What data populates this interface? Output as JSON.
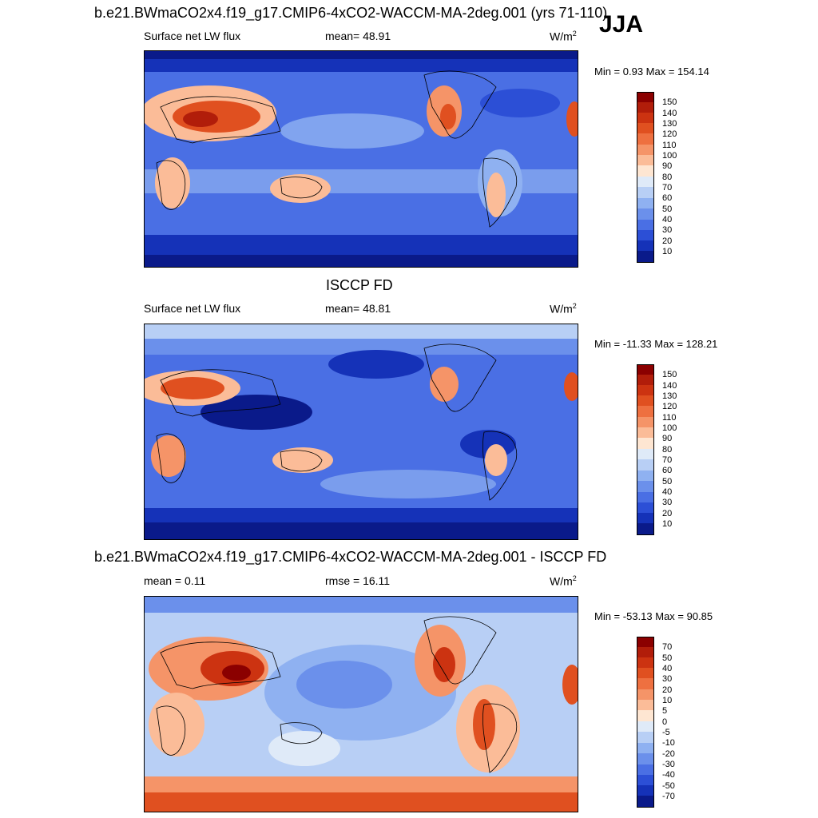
{
  "season": "JJA",
  "panels": [
    {
      "title": "b.e21.BWmaCO2x4.f19_g17.CMIP6-4xCO2-WACCM-MA-2deg.001 (yrs 71-110)",
      "left_label": "Surface net LW flux",
      "mid_label": "mean=  48.91",
      "units": "W/m",
      "units_sup": "2",
      "minmax": "Min =   0.93 Max = 154.14",
      "colorbar_levels": [
        "150",
        "140",
        "130",
        "120",
        "110",
        "100",
        "90",
        "80",
        "70",
        "60",
        "50",
        "40",
        "30",
        "20",
        "10"
      ]
    },
    {
      "title": "ISCCP FD",
      "left_label": "Surface net LW flux",
      "mid_label": "mean=  48.81",
      "units": "W/m",
      "units_sup": "2",
      "minmax": "Min = -11.33 Max = 128.21",
      "colorbar_levels": [
        "150",
        "140",
        "130",
        "120",
        "110",
        "100",
        "90",
        "80",
        "70",
        "60",
        "50",
        "40",
        "30",
        "20",
        "10"
      ]
    },
    {
      "title": "b.e21.BWmaCO2x4.f19_g17.CMIP6-4xCO2-WACCM-MA-2deg.001 - ISCCP FD",
      "left_label": "mean =   0.11",
      "mid_label": "rmse =  16.11",
      "units": "W/m",
      "units_sup": "2",
      "minmax": "Min = -53.13 Max =  90.85",
      "colorbar_levels": [
        "70",
        "50",
        "40",
        "30",
        "20",
        "10",
        "5",
        "0",
        "-5",
        "-10",
        "-20",
        "-30",
        "-40",
        "-50",
        "-70"
      ]
    }
  ],
  "colors": {
    "scale": [
      "#8b0000",
      "#b11d0a",
      "#cc3311",
      "#e05020",
      "#ee7040",
      "#f59468",
      "#fbbc98",
      "#fee6d2",
      "#dfeaf8",
      "#b8cff5",
      "#8fb1f1",
      "#6b90eb",
      "#4a6fe4",
      "#2c4fd6",
      "#1532b8",
      "#0a1a8a"
    ]
  }
}
